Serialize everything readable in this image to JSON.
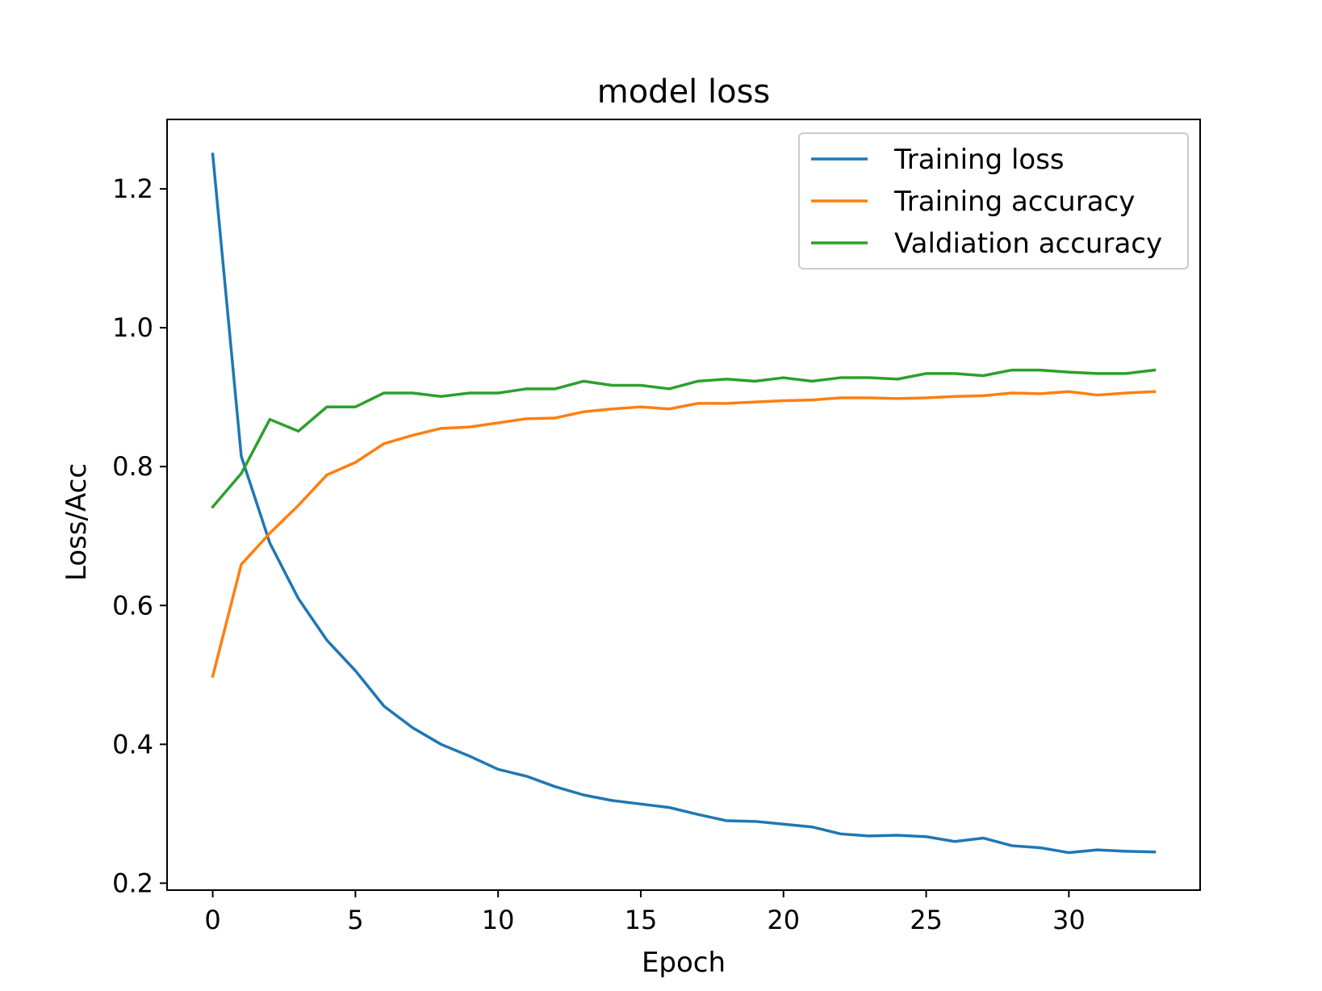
{
  "chart_data": {
    "type": "line",
    "title": "model loss",
    "xlabel": "Epoch",
    "ylabel": "Loss/Acc",
    "xlim": [
      -1.6,
      34.6
    ],
    "ylim": [
      0.19,
      1.3
    ],
    "xticks": [
      0,
      5,
      10,
      15,
      20,
      25,
      30
    ],
    "xtick_labels": [
      "0",
      "5",
      "10",
      "15",
      "20",
      "25",
      "30"
    ],
    "yticks": [
      0.2,
      0.4,
      0.6,
      0.8,
      1.0,
      1.2
    ],
    "ytick_labels": [
      "0.2",
      "0.4",
      "0.6",
      "0.8",
      "1.0",
      "1.2"
    ],
    "grid": false,
    "legend_position": "upper-right",
    "x": [
      0,
      1,
      2,
      3,
      4,
      5,
      6,
      7,
      8,
      9,
      10,
      11,
      12,
      13,
      14,
      15,
      16,
      17,
      18,
      19,
      20,
      21,
      22,
      23,
      24,
      25,
      26,
      27,
      28,
      29,
      30,
      31,
      32,
      33
    ],
    "series": [
      {
        "name": "Training loss",
        "color": "#1f77b4",
        "values": [
          1.25,
          0.815,
          0.69,
          0.61,
          0.55,
          0.506,
          0.455,
          0.424,
          0.4,
          0.383,
          0.364,
          0.354,
          0.339,
          0.327,
          0.319,
          0.314,
          0.309,
          0.299,
          0.29,
          0.289,
          0.285,
          0.281,
          0.271,
          0.268,
          0.269,
          0.267,
          0.26,
          0.265,
          0.254,
          0.251,
          0.244,
          0.248,
          0.246,
          0.245
        ]
      },
      {
        "name": "Training accuracy",
        "color": "#ff7f0e",
        "values": [
          0.498,
          0.659,
          0.704,
          0.744,
          0.788,
          0.806,
          0.833,
          0.845,
          0.855,
          0.857,
          0.863,
          0.869,
          0.87,
          0.879,
          0.883,
          0.886,
          0.883,
          0.891,
          0.891,
          0.893,
          0.895,
          0.896,
          0.899,
          0.899,
          0.898,
          0.899,
          0.901,
          0.902,
          0.906,
          0.905,
          0.908,
          0.903,
          0.906,
          0.908
        ]
      },
      {
        "name": "Valdiation accuracy",
        "color": "#2ca02c",
        "values": [
          0.742,
          0.79,
          0.868,
          0.851,
          0.886,
          0.886,
          0.906,
          0.906,
          0.901,
          0.906,
          0.906,
          0.912,
          0.912,
          0.923,
          0.917,
          0.917,
          0.912,
          0.923,
          0.926,
          0.923,
          0.928,
          0.923,
          0.928,
          0.928,
          0.926,
          0.934,
          0.934,
          0.931,
          0.939,
          0.939,
          0.936,
          0.934,
          0.934,
          0.939
        ]
      }
    ]
  }
}
